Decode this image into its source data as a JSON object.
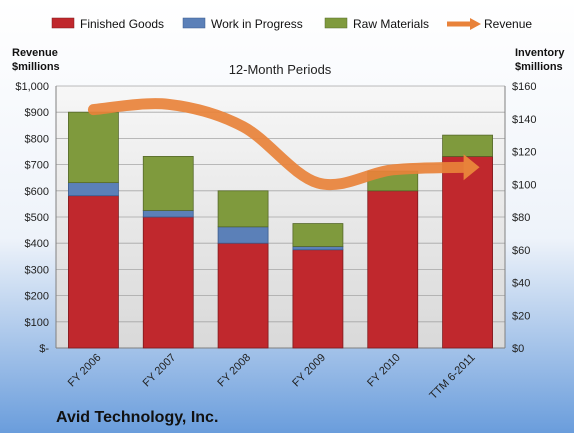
{
  "chart_data": {
    "type": "bar",
    "subtype": "stacked-bar-with-line",
    "company": "Avid Technology, Inc.",
    "subtitle": "12-Month Periods",
    "left_axis_title": [
      "Revenue",
      "$millions"
    ],
    "right_axis_title": [
      "Inventory",
      "$millions"
    ],
    "categories": [
      "FY 2006",
      "FY 2007",
      "FY 2008",
      "FY 2009",
      "FY 2010",
      "TTM 6-2011"
    ],
    "left_ylim": [
      0,
      1000
    ],
    "left_ticks": [
      0,
      100,
      200,
      300,
      400,
      500,
      600,
      700,
      800,
      900,
      1000
    ],
    "left_tick_labels": [
      "$-",
      "$100",
      "$200",
      "$300",
      "$400",
      "$500",
      "$600",
      "$700",
      "$800",
      "$900",
      "$1,000"
    ],
    "right_ylim": [
      0,
      160
    ],
    "right_ticks": [
      0,
      20,
      40,
      60,
      80,
      100,
      120,
      140,
      160
    ],
    "right_tick_labels": [
      "$0",
      "$20",
      "$40",
      "$60",
      "$80",
      "$100",
      "$120",
      "$140",
      "$160"
    ],
    "grid": true,
    "legend_position": "top",
    "series": [
      {
        "name": "Finished Goods",
        "axis": "right",
        "kind": "bar",
        "color": "#c0282d",
        "values": [
          93,
          80,
          64,
          60,
          96,
          117
        ]
      },
      {
        "name": "Work in Progress",
        "axis": "right",
        "kind": "bar",
        "color": "#5b80b8",
        "values": [
          8,
          4,
          10,
          2,
          0,
          0
        ]
      },
      {
        "name": "Raw Materials",
        "axis": "right",
        "kind": "bar",
        "color": "#7f9a3d",
        "values": [
          43,
          33,
          22,
          14,
          12,
          13
        ]
      },
      {
        "name": "Revenue",
        "axis": "left",
        "kind": "line",
        "color": "#e8823a",
        "values": [
          910,
          930,
          845,
          630,
          680,
          690
        ]
      }
    ]
  }
}
